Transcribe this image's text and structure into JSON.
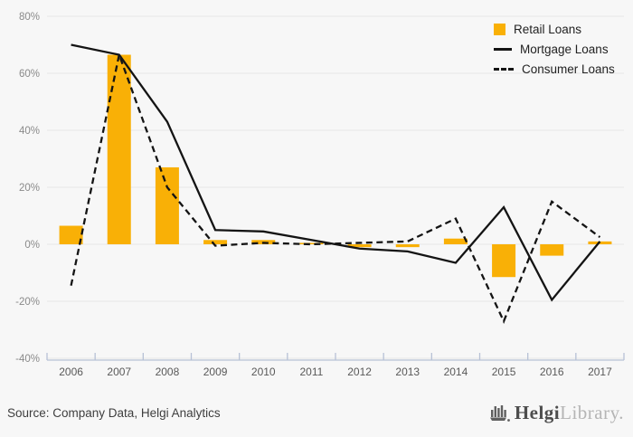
{
  "chart_data": {
    "type": "bar",
    "subtype": "combo-bar-and-lines",
    "title": "",
    "categories": [
      "2006",
      "2007",
      "2008",
      "2009",
      "2010",
      "2011",
      "2012",
      "2013",
      "2014",
      "2015",
      "2016",
      "2017"
    ],
    "series": [
      {
        "name": "Retail Loans",
        "type": "bar",
        "style": "solid",
        "color": "#F9B006",
        "values": [
          6.5,
          66.5,
          27,
          1.5,
          1.5,
          0.5,
          -1,
          -1,
          2,
          -11.5,
          -4,
          1
        ]
      },
      {
        "name": "Mortgage Loans",
        "type": "line",
        "style": "solid",
        "color": "#141414",
        "values": [
          70,
          66.5,
          43,
          5,
          4.5,
          1.5,
          -1.5,
          -2.5,
          -6.5,
          13,
          -19.5,
          1
        ]
      },
      {
        "name": "Consumer Loans",
        "type": "line",
        "style": "dashed",
        "color": "#141414",
        "values": [
          -14.5,
          66.5,
          20,
          -0.5,
          0.5,
          0,
          0.5,
          1,
          9,
          -27,
          15,
          2.5
        ]
      }
    ],
    "xlabel": "",
    "ylabel": "",
    "unit": "%",
    "y_axis": {
      "min": -40,
      "max": 80,
      "tick_step": 20,
      "ticks": [
        {
          "value": 80,
          "label": "80%"
        },
        {
          "value": 60,
          "label": "60%"
        },
        {
          "value": 40,
          "label": "40%"
        },
        {
          "value": 20,
          "label": "20%"
        },
        {
          "value": 0,
          "label": "0%"
        },
        {
          "value": -20,
          "label": "-20%"
        },
        {
          "value": -40,
          "label": "-40%"
        }
      ]
    },
    "grid": "horizontal-only",
    "legend_position": "top-right"
  },
  "legend": {
    "items": [
      {
        "label": "Retail Loans"
      },
      {
        "label": "Mortgage Loans"
      },
      {
        "label": "Consumer Loans"
      }
    ]
  },
  "footer": {
    "source_text": "Source: Company Data, Helgi Analytics",
    "logo": {
      "brand_primary": "Helgi",
      "brand_secondary": "Library."
    }
  },
  "colors": {
    "background": "#f7f7f7",
    "gridline": "#e7e7e7",
    "bar": "#F9B006",
    "line": "#141414",
    "x_axis_line": "#b7c1d6",
    "y_tick_text": "#8a8a8a",
    "x_tick_text": "#595959",
    "legend_text": "#222222",
    "source_text": "#3e3e3e",
    "logo_primary": "#4d4d4d",
    "logo_secondary": "#b5b5b5"
  }
}
